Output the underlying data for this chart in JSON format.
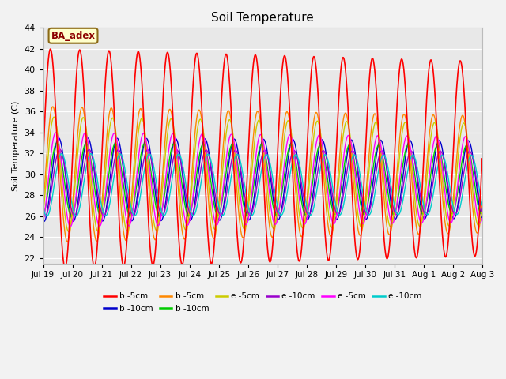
{
  "title": "Soil Temperature",
  "ylabel": "Soil Temperature (C)",
  "ylim": [
    21.5,
    44
  ],
  "fig_bg": "#f2f2f2",
  "ax_bg": "#e8e8e8",
  "annotation_text": "BA_adex",
  "annotation_bg": "#ffffcc",
  "annotation_border": "#8B6914",
  "annotation_text_color": "#8B0000",
  "series": [
    {
      "label": "b -5cm",
      "color": "#ff0000",
      "lw": 1.2,
      "amp": 10.0,
      "base": 31.5,
      "phase": 0.0,
      "amp_trend": -0.015
    },
    {
      "label": "b -10cm",
      "color": "#0000cc",
      "lw": 1.0,
      "amp": 4.0,
      "base": 29.5,
      "phase": 0.28,
      "amp_trend": -0.005
    },
    {
      "label": "b -5cm",
      "color": "#ff8800",
      "lw": 1.0,
      "amp": 6.5,
      "base": 30.0,
      "phase": 0.08,
      "amp_trend": -0.01
    },
    {
      "label": "b -10cm",
      "color": "#00cc00",
      "lw": 1.0,
      "amp": 3.5,
      "base": 29.5,
      "phase": 0.22,
      "amp_trend": -0.005
    },
    {
      "label": "e -5cm",
      "color": "#cccc00",
      "lw": 1.0,
      "amp": 5.5,
      "base": 30.0,
      "phase": 0.12,
      "amp_trend": -0.008
    },
    {
      "label": "e -10cm",
      "color": "#9900cc",
      "lw": 1.0,
      "amp": 3.2,
      "base": 29.2,
      "phase": 0.32,
      "amp_trend": -0.004
    },
    {
      "label": "e -5cm",
      "color": "#ff00ff",
      "lw": 1.0,
      "amp": 4.5,
      "base": 29.5,
      "phase": 0.18,
      "amp_trend": -0.006
    },
    {
      "label": "e -10cm",
      "color": "#00cccc",
      "lw": 1.0,
      "amp": 3.0,
      "base": 29.0,
      "phase": 0.38,
      "amp_trend": -0.004
    }
  ],
  "xtick_labels": [
    "Jul 19",
    "Jul 20",
    "Jul 21",
    "Jul 22",
    "Jul 23",
    "Jul 24",
    "Jul 25",
    "Jul 26",
    "Jul 27",
    "Jul 28",
    "Jul 29",
    "Jul 30",
    "Jul 31",
    "Aug 1",
    "Aug 2",
    "Aug 3"
  ],
  "ytick_vals": [
    22,
    24,
    26,
    28,
    30,
    32,
    34,
    36,
    38,
    40,
    42,
    44
  ]
}
